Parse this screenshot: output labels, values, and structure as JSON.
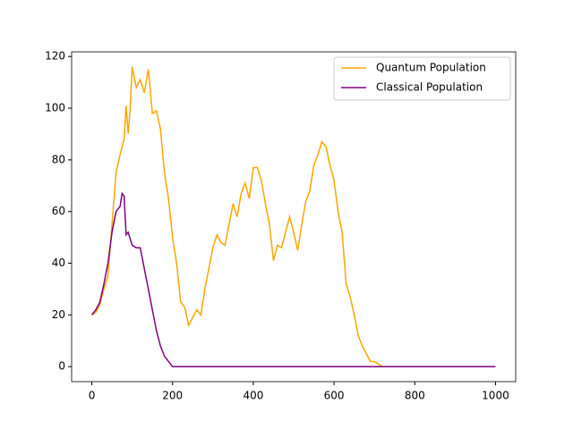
{
  "chart_data": {
    "type": "line",
    "xlim": [
      -50,
      1050
    ],
    "ylim": [
      -5.8,
      121.8
    ],
    "xticks": [
      0,
      200,
      400,
      600,
      800,
      1000
    ],
    "yticks": [
      0,
      20,
      40,
      60,
      80,
      100,
      120
    ],
    "legend": "upper right",
    "series": [
      {
        "name": "Quantum Population",
        "color": "orange",
        "x": [
          0,
          10,
          20,
          30,
          40,
          50,
          60,
          70,
          80,
          85,
          90,
          95,
          100,
          110,
          120,
          130,
          140,
          150,
          160,
          170,
          180,
          190,
          200,
          210,
          220,
          230,
          240,
          250,
          260,
          270,
          280,
          290,
          300,
          310,
          320,
          330,
          340,
          350,
          360,
          370,
          380,
          390,
          400,
          410,
          420,
          430,
          440,
          450,
          460,
          470,
          480,
          490,
          500,
          510,
          520,
          530,
          540,
          550,
          560,
          570,
          580,
          590,
          600,
          610,
          620,
          630,
          640,
          650,
          660,
          670,
          680,
          690,
          700,
          710,
          720,
          1000
        ],
        "values": [
          20,
          21,
          24,
          30,
          35,
          55,
          75,
          82,
          88,
          101,
          90,
          100,
          116,
          108,
          111,
          106,
          115,
          98,
          99,
          92,
          75,
          65,
          50,
          40,
          25,
          23,
          16,
          19,
          22,
          20,
          30,
          38,
          46,
          51,
          48,
          47,
          55,
          63,
          58,
          67,
          71,
          65,
          77,
          77,
          72,
          63,
          55,
          41,
          47,
          46,
          52,
          58,
          52,
          45,
          55,
          64,
          68,
          78,
          82,
          87,
          85,
          78,
          72,
          60,
          52,
          32,
          27,
          20,
          12,
          8,
          5,
          2,
          2,
          1,
          0,
          0
        ]
      },
      {
        "name": "Classical Population",
        "color": "purple",
        "x": [
          0,
          10,
          20,
          30,
          40,
          50,
          60,
          70,
          75,
          80,
          85,
          90,
          100,
          110,
          120,
          130,
          140,
          150,
          160,
          170,
          180,
          190,
          200,
          1000
        ],
        "values": [
          20,
          22,
          25,
          32,
          40,
          52,
          60,
          62,
          67,
          66,
          51,
          52,
          47,
          46,
          46,
          38,
          30,
          22,
          14,
          8,
          4,
          2,
          0,
          0
        ]
      }
    ]
  }
}
